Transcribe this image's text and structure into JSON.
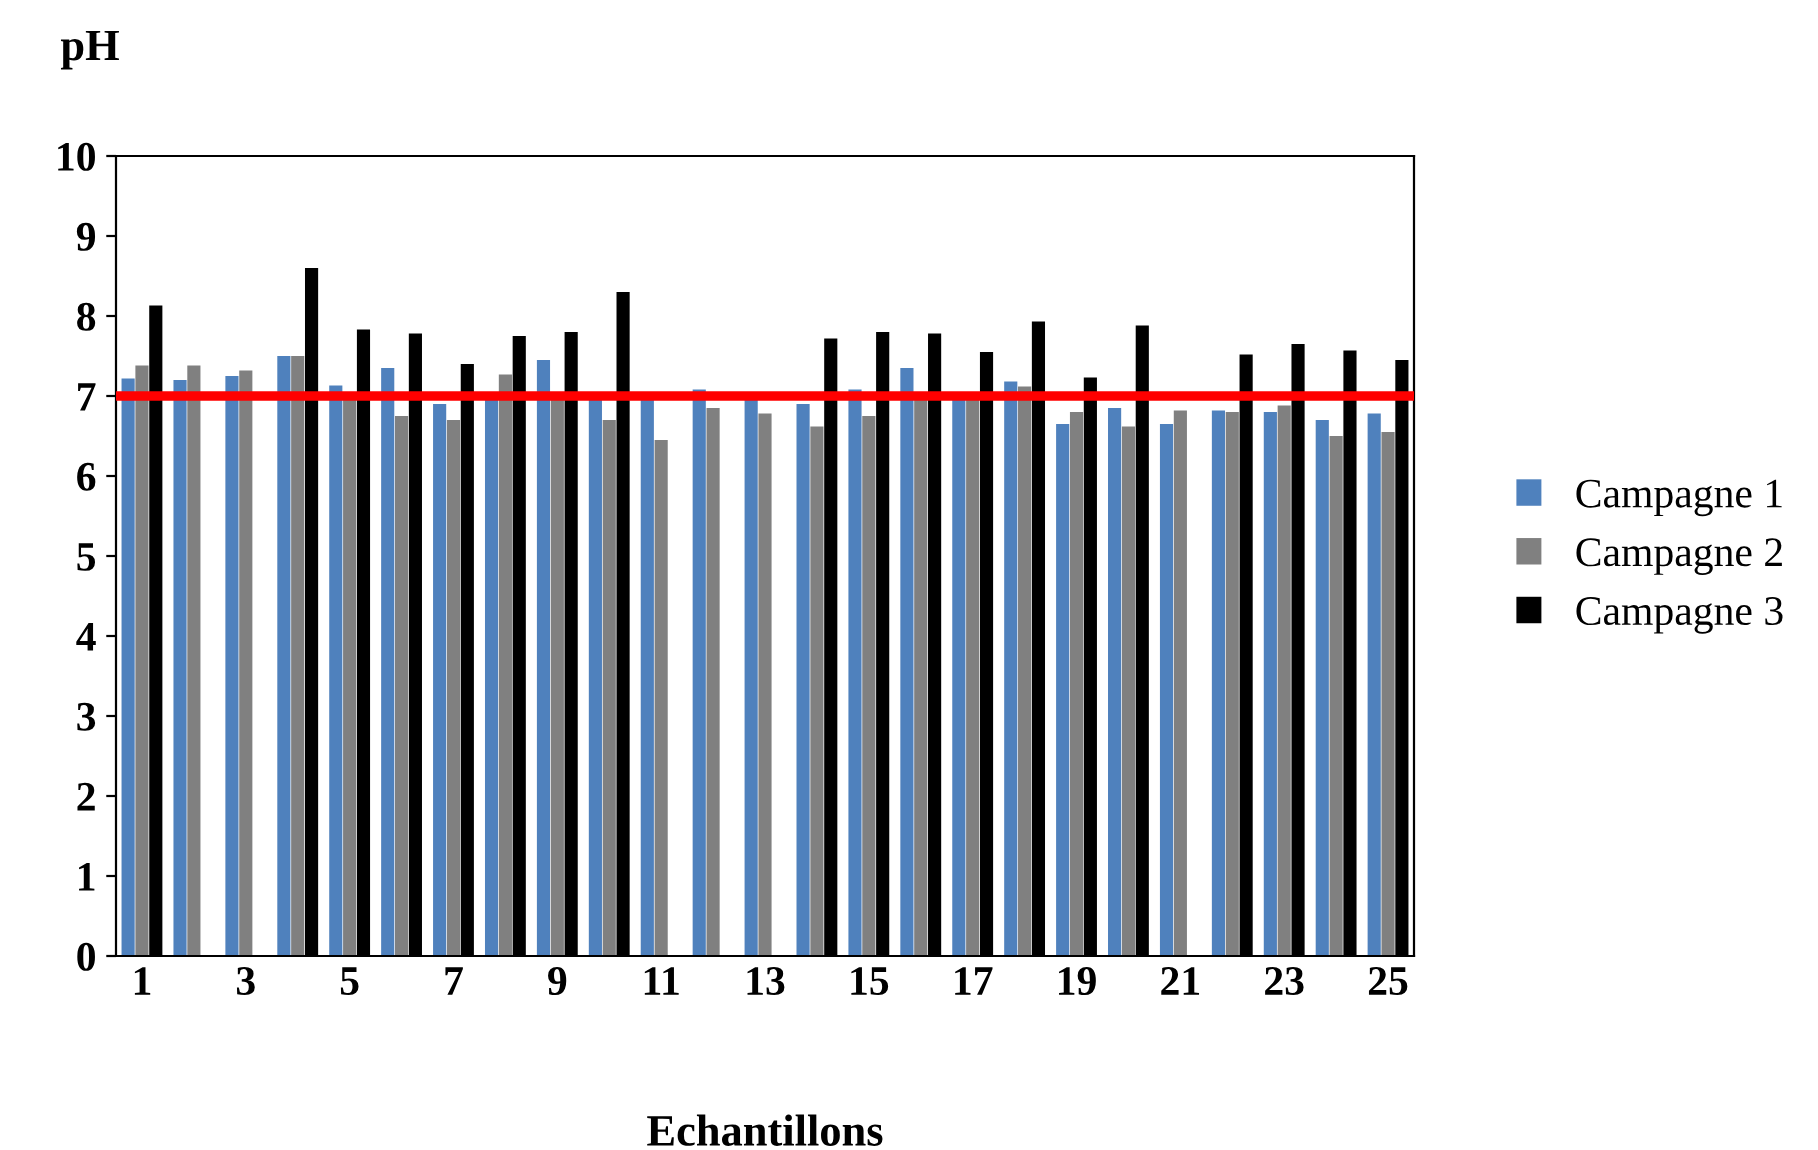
{
  "chart_data": {
    "type": "bar",
    "ylabel": "pH",
    "xlabel": "Echantillons",
    "categories": [
      "1",
      null,
      "3",
      null,
      "5",
      null,
      "7",
      null,
      "9",
      null,
      "11",
      null,
      "13",
      null,
      "15",
      null,
      "17",
      null,
      "19",
      null,
      "21",
      null,
      "23",
      null,
      "25"
    ],
    "series": [
      {
        "name": "Campagne 1",
        "color": "#4f81bd",
        "values": [
          7.22,
          7.2,
          7.25,
          7.5,
          7.13,
          7.35,
          6.9,
          7.0,
          7.45,
          6.95,
          6.95,
          7.08,
          7.0,
          6.9,
          7.08,
          7.35,
          6.95,
          7.18,
          6.65,
          6.85,
          6.65,
          6.82,
          6.8,
          6.7,
          6.78
        ]
      },
      {
        "name": "Campagne 2",
        "color": "#808080",
        "values": [
          7.38,
          7.38,
          7.32,
          7.5,
          6.95,
          6.75,
          6.7,
          7.27,
          7.0,
          6.7,
          6.45,
          6.85,
          6.78,
          6.62,
          6.75,
          7.0,
          6.95,
          7.12,
          6.8,
          6.62,
          6.82,
          6.8,
          6.88,
          6.5,
          6.55
        ]
      },
      {
        "name": "Campagne 3",
        "color": "#000000",
        "values": [
          8.13,
          null,
          null,
          8.6,
          7.83,
          7.78,
          7.4,
          7.75,
          7.8,
          8.3,
          null,
          null,
          null,
          7.72,
          7.8,
          7.78,
          7.55,
          7.93,
          7.23,
          7.88,
          null,
          7.52,
          7.65,
          7.57,
          7.45
        ]
      }
    ],
    "ylim": [
      0,
      10
    ],
    "yticks": [
      0,
      1,
      2,
      3,
      4,
      5,
      6,
      7,
      8,
      9,
      10
    ],
    "ref_lines": [
      {
        "axis": "y",
        "value": 7,
        "color": "#ff0000"
      }
    ],
    "grid": false,
    "legend": "right"
  }
}
